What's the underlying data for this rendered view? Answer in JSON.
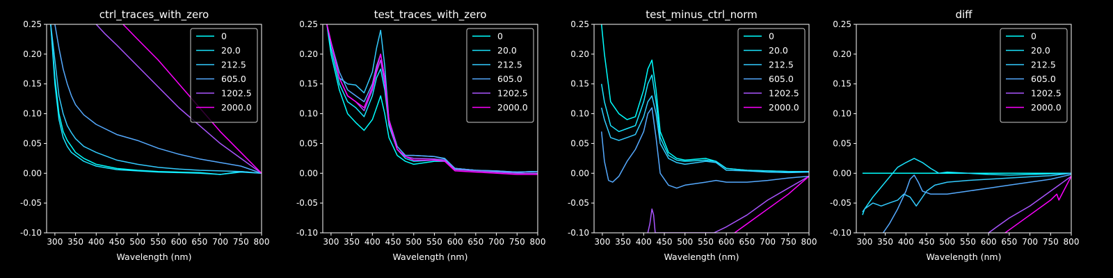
{
  "chart_data": [
    {
      "type": "line",
      "title": "ctrl_traces_with_zero",
      "xlabel": "Wavelength (nm)",
      "ylabel": "",
      "xlim": [
        280,
        800
      ],
      "ylim": [
        -0.1,
        0.25
      ],
      "xticks": [
        300,
        350,
        400,
        450,
        500,
        550,
        600,
        650,
        700,
        750,
        800
      ],
      "yticks": [
        -0.1,
        -0.05,
        0.0,
        0.05,
        0.1,
        0.15,
        0.2,
        0.25
      ],
      "legend": "top-right",
      "series": [
        {
          "name": "0",
          "color": "#00ffff",
          "x": [
            290,
            300,
            310,
            320,
            330,
            340,
            350,
            370,
            400,
            450,
            500,
            550,
            600,
            650,
            700,
            750,
            800
          ],
          "y": [
            0.25,
            0.16,
            0.1,
            0.07,
            0.055,
            0.045,
            0.035,
            0.025,
            0.015,
            0.008,
            0.005,
            0.003,
            0.002,
            0.001,
            -0.002,
            0.003,
            0.0
          ]
        },
        {
          "name": "20.0",
          "color": "#1ae5ff",
          "x": [
            290,
            300,
            310,
            320,
            330,
            340,
            350,
            370,
            400,
            450,
            500,
            550,
            600,
            650,
            700,
            750,
            800
          ],
          "y": [
            0.25,
            0.15,
            0.09,
            0.06,
            0.045,
            0.035,
            0.03,
            0.02,
            0.012,
            0.006,
            0.004,
            0.002,
            0.001,
            0.0,
            -0.002,
            0.002,
            0.0
          ]
        },
        {
          "name": "212.5",
          "color": "#33ccff",
          "x": [
            290,
            300,
            310,
            320,
            330,
            340,
            350,
            370,
            400,
            450,
            500,
            550,
            600,
            650,
            700,
            750,
            800
          ],
          "y": [
            0.25,
            0.19,
            0.13,
            0.1,
            0.08,
            0.068,
            0.058,
            0.045,
            0.035,
            0.022,
            0.015,
            0.01,
            0.007,
            0.005,
            0.004,
            0.003,
            0.0
          ]
        },
        {
          "name": "605.0",
          "color": "#55aaff",
          "x": [
            300,
            310,
            320,
            330,
            340,
            350,
            370,
            400,
            450,
            500,
            550,
            600,
            650,
            700,
            750,
            800
          ],
          "y": [
            0.25,
            0.21,
            0.175,
            0.15,
            0.13,
            0.115,
            0.098,
            0.082,
            0.065,
            0.055,
            0.042,
            0.032,
            0.024,
            0.018,
            0.012,
            0.0
          ]
        },
        {
          "name": "1202.5",
          "color": "#aa55ff",
          "x": [
            400,
            420,
            450,
            500,
            550,
            600,
            650,
            700,
            750,
            800
          ],
          "y": [
            0.25,
            0.235,
            0.215,
            0.18,
            0.145,
            0.11,
            0.08,
            0.05,
            0.025,
            0.0
          ]
        },
        {
          "name": "2000.0",
          "color": "#ff00ff",
          "x": [
            465,
            500,
            550,
            600,
            650,
            700,
            750,
            800
          ],
          "y": [
            0.25,
            0.225,
            0.19,
            0.15,
            0.11,
            0.07,
            0.035,
            0.0
          ]
        }
      ]
    },
    {
      "type": "line",
      "title": "test_traces_with_zero",
      "xlabel": "Wavelength (nm)",
      "ylabel": "",
      "xlim": [
        280,
        800
      ],
      "ylim": [
        -0.1,
        0.25
      ],
      "xticks": [
        300,
        350,
        400,
        450,
        500,
        550,
        600,
        650,
        700,
        750,
        800
      ],
      "yticks": [
        -0.1,
        -0.05,
        0.0,
        0.05,
        0.1,
        0.15,
        0.2,
        0.25
      ],
      "legend": "top-right",
      "series": [
        {
          "name": "0",
          "color": "#00ffff",
          "x": [
            290,
            300,
            320,
            340,
            360,
            380,
            400,
            410,
            420,
            430,
            440,
            460,
            480,
            500,
            550,
            575,
            600,
            650,
            700,
            750,
            800
          ],
          "y": [
            0.25,
            0.2,
            0.14,
            0.1,
            0.085,
            0.072,
            0.09,
            0.11,
            0.13,
            0.1,
            0.06,
            0.03,
            0.02,
            0.015,
            0.02,
            0.02,
            0.008,
            0.005,
            0.003,
            0.002,
            0.003
          ]
        },
        {
          "name": "20.0",
          "color": "#1ae5ff",
          "x": [
            290,
            300,
            320,
            340,
            360,
            380,
            400,
            410,
            420,
            430,
            440,
            460,
            480,
            500,
            550,
            575,
            600,
            650,
            700,
            750,
            800
          ],
          "y": [
            0.25,
            0.21,
            0.15,
            0.12,
            0.11,
            0.095,
            0.13,
            0.16,
            0.175,
            0.14,
            0.08,
            0.04,
            0.025,
            0.02,
            0.022,
            0.022,
            0.008,
            0.005,
            0.003,
            0.002,
            0.003
          ]
        },
        {
          "name": "212.5",
          "color": "#33ccff",
          "x": [
            290,
            300,
            320,
            340,
            360,
            380,
            400,
            410,
            420,
            430,
            440,
            460,
            480,
            500,
            550,
            575,
            600,
            650,
            700,
            750,
            800
          ],
          "y": [
            0.25,
            0.22,
            0.16,
            0.15,
            0.148,
            0.135,
            0.17,
            0.21,
            0.24,
            0.18,
            0.09,
            0.045,
            0.03,
            0.03,
            0.028,
            0.025,
            0.008,
            0.005,
            0.004,
            0.002,
            0.003
          ]
        },
        {
          "name": "605.0",
          "color": "#55aaff",
          "x": [
            290,
            300,
            320,
            340,
            360,
            380,
            400,
            410,
            420,
            430,
            440,
            460,
            480,
            500,
            550,
            575,
            600,
            650,
            700,
            750,
            800
          ],
          "y": [
            0.25,
            0.22,
            0.17,
            0.14,
            0.13,
            0.12,
            0.15,
            0.18,
            0.2,
            0.16,
            0.09,
            0.045,
            0.03,
            0.03,
            0.028,
            0.024,
            0.008,
            0.005,
            0.004,
            0.002,
            0.003
          ]
        },
        {
          "name": "1202.5",
          "color": "#aa55ff",
          "x": [
            290,
            300,
            320,
            340,
            360,
            380,
            400,
            410,
            420,
            430,
            440,
            460,
            480,
            500,
            550,
            575,
            600,
            650,
            700,
            750,
            800
          ],
          "y": [
            0.25,
            0.22,
            0.16,
            0.13,
            0.12,
            0.105,
            0.14,
            0.17,
            0.19,
            0.15,
            0.085,
            0.04,
            0.028,
            0.025,
            0.024,
            0.022,
            0.006,
            0.004,
            0.002,
            0.0,
            0.0
          ]
        },
        {
          "name": "2000.0",
          "color": "#ff00ff",
          "x": [
            290,
            300,
            320,
            340,
            360,
            380,
            400,
            410,
            420,
            430,
            440,
            460,
            480,
            500,
            550,
            575,
            600,
            650,
            700,
            750,
            800
          ],
          "y": [
            0.25,
            0.22,
            0.16,
            0.13,
            0.12,
            0.11,
            0.145,
            0.175,
            0.2,
            0.16,
            0.09,
            0.04,
            0.028,
            0.022,
            0.022,
            0.02,
            0.004,
            0.002,
            0.0,
            -0.002,
            -0.002
          ]
        }
      ]
    },
    {
      "type": "line",
      "title": "test_minus_ctrl_norm",
      "xlabel": "Wavelength (nm)",
      "ylabel": "",
      "xlim": [
        280,
        800
      ],
      "ylim": [
        -0.1,
        0.25
      ],
      "xticks": [
        300,
        350,
        400,
        450,
        500,
        550,
        600,
        650,
        700,
        750,
        800
      ],
      "yticks": [
        -0.1,
        -0.05,
        0.0,
        0.05,
        0.1,
        0.15,
        0.2,
        0.25
      ],
      "legend": "top-right",
      "series": [
        {
          "name": "0",
          "color": "#00ffff",
          "x": [
            298,
            305,
            320,
            340,
            360,
            380,
            400,
            410,
            420,
            430,
            440,
            460,
            480,
            500,
            550,
            575,
            600,
            650,
            700,
            750,
            800
          ],
          "y": [
            0.25,
            0.2,
            0.12,
            0.1,
            0.09,
            0.095,
            0.14,
            0.175,
            0.19,
            0.14,
            0.07,
            0.035,
            0.025,
            0.022,
            0.025,
            0.02,
            0.008,
            0.005,
            0.004,
            0.003,
            0.003
          ]
        },
        {
          "name": "20.0",
          "color": "#1ae5ff",
          "x": [
            298,
            305,
            320,
            340,
            360,
            380,
            400,
            410,
            420,
            430,
            440,
            460,
            480,
            500,
            550,
            575,
            600,
            650,
            700,
            750,
            800
          ],
          "y": [
            0.15,
            0.12,
            0.08,
            0.07,
            0.075,
            0.08,
            0.12,
            0.15,
            0.165,
            0.12,
            0.06,
            0.03,
            0.022,
            0.02,
            0.022,
            0.02,
            0.008,
            0.005,
            0.004,
            0.003,
            0.003
          ]
        },
        {
          "name": "212.5",
          "color": "#33ccff",
          "x": [
            298,
            305,
            320,
            340,
            360,
            380,
            400,
            410,
            420,
            430,
            440,
            460,
            480,
            500,
            550,
            575,
            600,
            650,
            700,
            750,
            800
          ],
          "y": [
            0.11,
            0.09,
            0.06,
            0.055,
            0.06,
            0.065,
            0.095,
            0.12,
            0.13,
            0.1,
            0.05,
            0.025,
            0.018,
            0.015,
            0.02,
            0.018,
            0.005,
            0.004,
            0.002,
            0.001,
            0.002
          ]
        },
        {
          "name": "605.0",
          "color": "#55aaff",
          "x": [
            298,
            305,
            315,
            325,
            340,
            360,
            380,
            400,
            410,
            420,
            430,
            440,
            460,
            480,
            500,
            550,
            575,
            600,
            650,
            700,
            750,
            800
          ],
          "y": [
            0.07,
            0.02,
            -0.012,
            -0.015,
            -0.005,
            0.02,
            0.04,
            0.07,
            0.1,
            0.11,
            0.06,
            0.0,
            -0.02,
            -0.025,
            -0.02,
            -0.015,
            -0.012,
            -0.015,
            -0.015,
            -0.012,
            -0.008,
            -0.005
          ]
        },
        {
          "name": "1202.5",
          "color": "#aa55ff",
          "x": [
            410,
            415,
            420,
            424,
            428,
            430,
            570,
            600,
            650,
            700,
            750,
            800
          ],
          "y": [
            -0.1,
            -0.085,
            -0.06,
            -0.07,
            -0.1,
            -0.1,
            -0.1,
            -0.09,
            -0.07,
            -0.045,
            -0.025,
            -0.005
          ]
        },
        {
          "name": "2000.0",
          "color": "#ff00ff",
          "x": [
            620,
            650,
            700,
            750,
            800
          ],
          "y": [
            -0.1,
            -0.085,
            -0.06,
            -0.035,
            -0.005
          ]
        }
      ]
    },
    {
      "type": "line",
      "title": "diff",
      "xlabel": "Wavelength (nm)",
      "ylabel": "",
      "xlim": [
        280,
        800
      ],
      "ylim": [
        -0.1,
        0.25
      ],
      "xticks": [
        300,
        350,
        400,
        450,
        500,
        550,
        600,
        650,
        700,
        750,
        800
      ],
      "yticks": [
        -0.1,
        -0.05,
        0.0,
        0.05,
        0.1,
        0.15,
        0.2,
        0.25
      ],
      "legend": "top-right",
      "series": [
        {
          "name": "0",
          "color": "#00ffff",
          "x": [
            295,
            800
          ],
          "y": [
            0.0,
            0.0
          ]
        },
        {
          "name": "20.0",
          "color": "#1ae5ff",
          "x": [
            295,
            300,
            320,
            350,
            380,
            400,
            420,
            440,
            460,
            480,
            500,
            550,
            600,
            650,
            700,
            750,
            800
          ],
          "y": [
            -0.07,
            -0.06,
            -0.04,
            -0.015,
            0.01,
            0.018,
            0.025,
            0.018,
            0.008,
            0.0,
            0.002,
            0.0,
            -0.002,
            -0.003,
            -0.002,
            -0.001,
            0.0
          ]
        },
        {
          "name": "212.5",
          "color": "#33ccff",
          "x": [
            295,
            300,
            320,
            340,
            360,
            380,
            395,
            410,
            420,
            425,
            435,
            450,
            470,
            500,
            550,
            600,
            650,
            700,
            750,
            800
          ],
          "y": [
            -0.065,
            -0.06,
            -0.05,
            -0.055,
            -0.05,
            -0.045,
            -0.035,
            -0.04,
            -0.05,
            -0.055,
            -0.045,
            -0.03,
            -0.02,
            -0.015,
            -0.012,
            -0.01,
            -0.008,
            -0.006,
            -0.004,
            0.0
          ]
        },
        {
          "name": "605.0",
          "color": "#55aaff",
          "x": [
            345,
            360,
            380,
            400,
            410,
            420,
            430,
            440,
            460,
            480,
            500,
            550,
            600,
            650,
            700,
            750,
            800
          ],
          "y": [
            -0.1,
            -0.085,
            -0.06,
            -0.03,
            -0.01,
            -0.003,
            -0.015,
            -0.03,
            -0.035,
            -0.035,
            -0.035,
            -0.03,
            -0.025,
            -0.02,
            -0.015,
            -0.01,
            -0.002
          ]
        },
        {
          "name": "1202.5",
          "color": "#aa55ff",
          "x": [
            600,
            620,
            650,
            700,
            750,
            800
          ],
          "y": [
            -0.1,
            -0.09,
            -0.075,
            -0.055,
            -0.03,
            -0.005
          ]
        },
        {
          "name": "2000.0",
          "color": "#ff00ff",
          "x": [
            640,
            650,
            700,
            750,
            765,
            770,
            800
          ],
          "y": [
            -0.1,
            -0.095,
            -0.07,
            -0.045,
            -0.035,
            -0.045,
            -0.005
          ]
        }
      ]
    }
  ]
}
